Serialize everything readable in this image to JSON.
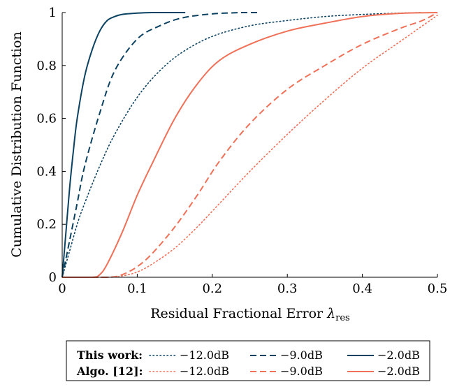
{
  "chart_data": {
    "type": "line",
    "title": "",
    "xlabel": "Residual Fractional Error",
    "xlabel_symbol": "λ",
    "xlabel_subscript": "res",
    "ylabel": "Cumulative Distribution Function",
    "xlim": [
      0,
      0.5
    ],
    "ylim": [
      0,
      1
    ],
    "xticks": [
      "0",
      "0.1",
      "0.2",
      "0.3",
      "0.4",
      "0.5"
    ],
    "yticks": [
      "0",
      "0.2",
      "0.4",
      "0.6",
      "0.8",
      "1"
    ],
    "grid": false,
    "legend_position": "bottom",
    "legend": {
      "groups": [
        {
          "label": "This work:",
          "color": "#0b4262"
        },
        {
          "label": "Algo. [12]:",
          "color": "#f07058"
        }
      ],
      "entries": [
        "−12.0dB",
        "−9.0dB",
        "−2.0dB"
      ]
    },
    "series": [
      {
        "group": "This work",
        "snr": "−12.0dB",
        "color": "#0b4262",
        "style": "dotted",
        "x": [
          0,
          0.01,
          0.02,
          0.03,
          0.05,
          0.07,
          0.1,
          0.13,
          0.16,
          0.2,
          0.25,
          0.3,
          0.35,
          0.4,
          0.45,
          0.48
        ],
        "y": [
          0,
          0.1,
          0.2,
          0.28,
          0.42,
          0.54,
          0.68,
          0.78,
          0.85,
          0.91,
          0.95,
          0.97,
          0.985,
          0.993,
          0.998,
          1
        ]
      },
      {
        "group": "This work",
        "snr": "−9.0dB",
        "color": "#0b4262",
        "style": "dashed",
        "x": [
          0,
          0.01,
          0.02,
          0.03,
          0.05,
          0.07,
          0.1,
          0.13,
          0.16,
          0.2,
          0.24,
          0.26
        ],
        "y": [
          0,
          0.14,
          0.28,
          0.42,
          0.62,
          0.78,
          0.9,
          0.95,
          0.98,
          0.995,
          1,
          1
        ]
      },
      {
        "group": "This work",
        "snr": "−2.0dB",
        "color": "#0b4262",
        "style": "solid",
        "x": [
          0,
          0.005,
          0.01,
          0.015,
          0.02,
          0.03,
          0.04,
          0.05,
          0.06,
          0.07,
          0.08,
          0.1,
          0.12,
          0.164
        ],
        "y": [
          0,
          0.17,
          0.34,
          0.48,
          0.6,
          0.76,
          0.86,
          0.93,
          0.97,
          0.985,
          0.993,
          0.998,
          1,
          1
        ]
      },
      {
        "group": "Algo. [12]",
        "snr": "−12.0dB",
        "color": "#f07058",
        "style": "dotted",
        "x": [
          0,
          0.06,
          0.08,
          0.1,
          0.12,
          0.15,
          0.18,
          0.21,
          0.25,
          0.3,
          0.35,
          0.4,
          0.45,
          0.48,
          0.5
        ],
        "y": [
          0,
          0,
          0.005,
          0.02,
          0.05,
          0.11,
          0.19,
          0.28,
          0.4,
          0.54,
          0.67,
          0.79,
          0.89,
          0.95,
          0.99
        ]
      },
      {
        "group": "Algo. [12]",
        "snr": "−9.0dB",
        "color": "#f07058",
        "style": "dashed",
        "x": [
          0,
          0.06,
          0.08,
          0.1,
          0.12,
          0.15,
          0.18,
          0.21,
          0.25,
          0.3,
          0.35,
          0.4,
          0.45,
          0.48,
          0.5
        ],
        "y": [
          0,
          0,
          0.01,
          0.04,
          0.09,
          0.19,
          0.31,
          0.44,
          0.58,
          0.71,
          0.8,
          0.88,
          0.94,
          0.97,
          1
        ]
      },
      {
        "group": "Algo. [12]",
        "snr": "−2.0dB",
        "color": "#f07058",
        "style": "solid",
        "x": [
          0,
          0.04,
          0.05,
          0.06,
          0.08,
          0.1,
          0.12,
          0.15,
          0.18,
          0.21,
          0.25,
          0.3,
          0.35,
          0.4,
          0.45,
          0.5
        ],
        "y": [
          0,
          0,
          0.01,
          0.05,
          0.17,
          0.31,
          0.43,
          0.6,
          0.73,
          0.82,
          0.88,
          0.93,
          0.96,
          0.985,
          0.997,
          1
        ]
      }
    ]
  }
}
